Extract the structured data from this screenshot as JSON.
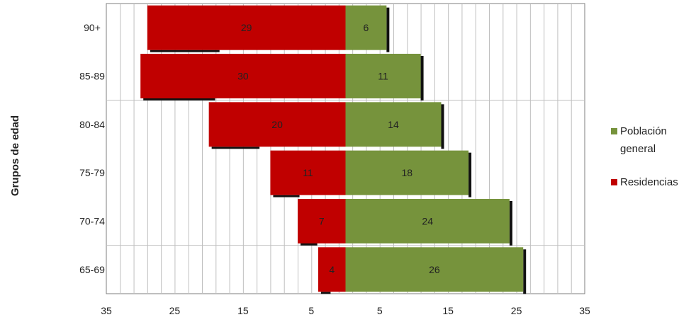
{
  "chart_data": {
    "type": "bar",
    "orientation": "horizontal-population-pyramid",
    "ylabel": "Grupos de edad",
    "categories": [
      "65-69",
      "70-74",
      "75-79",
      "80-84",
      "85-89",
      "90+"
    ],
    "series": [
      {
        "name": "Residencias",
        "side": "left",
        "color": "#c00000",
        "values": [
          4,
          7,
          11,
          20,
          30,
          29
        ]
      },
      {
        "name": "Población general",
        "side": "right",
        "color": "#76933c",
        "values": [
          26,
          24,
          18,
          14,
          11,
          6
        ]
      }
    ],
    "xlim": [
      -35,
      35
    ],
    "x_tick_values": [
      -35,
      -25,
      -15,
      -5,
      5,
      15,
      25,
      35
    ],
    "x_tick_labels": [
      "35",
      "25",
      "15",
      "5",
      "5",
      "15",
      "25",
      "35"
    ],
    "grid": true,
    "legend": {
      "position": "right",
      "items": [
        {
          "lines": [
            "Población",
            "general"
          ],
          "color": "#76933c"
        },
        {
          "lines": [
            "Residencias"
          ],
          "color": "#c00000"
        }
      ]
    }
  }
}
